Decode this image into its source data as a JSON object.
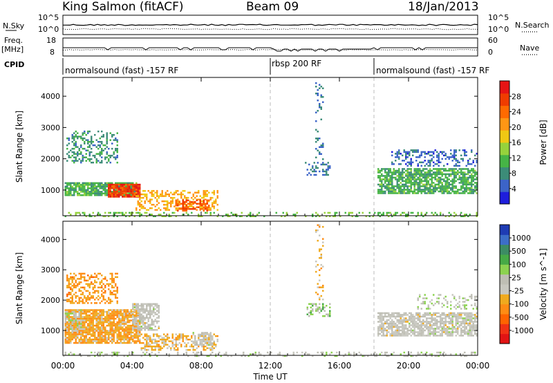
{
  "header": {
    "title": "King Salmon (fitACF)",
    "beam": "Beam 09",
    "date": "18/Jan/2013"
  },
  "left_panel_labels": {
    "nsky": "N.Sky",
    "freq_line1": "Freq.",
    "freq_line2": "[MHz]",
    "cpid": "CPID"
  },
  "right_panel_labels": {
    "nsearch": "N.Search",
    "nave": "Nave"
  },
  "noise_axis": {
    "left_ticks": [
      "10^5",
      "10^0"
    ],
    "right_ticks": [
      "10^5",
      "10^0"
    ]
  },
  "freq_axis": {
    "left_ticks": [
      "18",
      "8"
    ],
    "right_ticks": [
      "60",
      "0"
    ]
  },
  "cpid_segments": [
    {
      "label": "normalsound (fast) -157 RF",
      "start": 0,
      "end": 12
    },
    {
      "label": "rbsp 200 RF",
      "start": 12,
      "end": 18
    },
    {
      "label": "normalsound (fast) -157 RF",
      "start": 18,
      "end": 24
    }
  ],
  "colorbar_power": {
    "title": "Power [dB]",
    "ticks": [
      "28",
      "24",
      "20",
      "16",
      "12",
      "8",
      "4"
    ],
    "colors": [
      "#1e1edc",
      "#3c64c8",
      "#3c8c78",
      "#46b446",
      "#96d23c",
      "#f0c814",
      "#ff9614",
      "#ff6a00",
      "#f03c00",
      "#e61414"
    ]
  },
  "colorbar_velocity": {
    "title": "Velocity [m s^-1]",
    "ticks": [
      "1000",
      "500",
      "100",
      "25",
      "-25",
      "-100",
      "-500",
      "-1000"
    ],
    "colors": [
      "#1e3cb4",
      "#3c6ec8",
      "#3c8c64",
      "#46aa46",
      "#8cd250",
      "#bebeb4",
      "#c8c8c0",
      "#f0aa1e",
      "#ff8c14",
      "#ff6400",
      "#f03214",
      "#e11414"
    ]
  },
  "chart_data": [
    {
      "type": "heatmap",
      "title": "",
      "ylabel": "Slant Range [km]",
      "yticks": [
        "1000",
        "2000",
        "3000",
        "4000"
      ],
      "xlabel": "Time UT",
      "xticks": [
        "00:00",
        "04:00",
        "08:00",
        "12:00",
        "16:00",
        "20:00",
        "00:00"
      ],
      "xlim": [
        0,
        24
      ],
      "ylim": [
        180,
        4600
      ],
      "colorbar": "Power [dB]",
      "clim": [
        0,
        30
      ],
      "scatter_regions": [
        {
          "t0": 0.1,
          "t1": 4.3,
          "r0": 850,
          "r1": 1250,
          "value": 10,
          "density": 0.85
        },
        {
          "t0": 2.6,
          "t1": 4.5,
          "r0": 800,
          "r1": 1200,
          "value": 26,
          "density": 0.9
        },
        {
          "t0": 0.2,
          "t1": 3.2,
          "r0": 1900,
          "r1": 2900,
          "value": 8,
          "density": 0.35
        },
        {
          "t0": 4.2,
          "t1": 9.0,
          "r0": 350,
          "r1": 1000,
          "value": 18,
          "density": 0.45
        },
        {
          "t0": 6.5,
          "t1": 8.5,
          "r0": 350,
          "r1": 700,
          "value": 24,
          "density": 0.5
        },
        {
          "t0": 14.0,
          "t1": 15.5,
          "r0": 1500,
          "r1": 1900,
          "value": 6,
          "density": 0.35
        },
        {
          "t0": 14.6,
          "t1": 15.1,
          "r0": 2000,
          "r1": 4500,
          "value": 6,
          "density": 0.2
        },
        {
          "t0": 18.2,
          "t1": 24.0,
          "r0": 900,
          "r1": 1700,
          "value": 10,
          "density": 0.75
        },
        {
          "t0": 19.0,
          "t1": 24.0,
          "r0": 1750,
          "r1": 2300,
          "value": 5,
          "density": 0.35
        },
        {
          "t0": 0.0,
          "t1": 24.0,
          "r0": 180,
          "r1": 300,
          "value": 12,
          "density": 0.25
        }
      ]
    },
    {
      "type": "heatmap",
      "title": "",
      "ylabel": "Slant Range [km]",
      "yticks": [
        "1000",
        "2000",
        "3000",
        "4000"
      ],
      "xlabel": "Time UT",
      "xticks": [
        "00:00",
        "04:00",
        "08:00",
        "12:00",
        "16:00",
        "20:00",
        "00:00"
      ],
      "xlim": [
        0,
        24
      ],
      "ylim": [
        180,
        4600
      ],
      "colorbar": "Velocity [m s^-1]",
      "clim": [
        -1000,
        1000
      ],
      "scatter_regions": [
        {
          "t0": 0.1,
          "t1": 4.5,
          "r0": 600,
          "r1": 1700,
          "value": -300,
          "density": 0.85
        },
        {
          "t0": 0.2,
          "t1": 3.2,
          "r0": 1900,
          "r1": 2900,
          "value": -350,
          "density": 0.45
        },
        {
          "t0": 0.1,
          "t1": 1.2,
          "r0": 1000,
          "r1": 1700,
          "value": 60,
          "density": 0.55
        },
        {
          "t0": 4.0,
          "t1": 5.6,
          "r0": 1000,
          "r1": 1900,
          "value": 0,
          "density": 0.7
        },
        {
          "t0": 4.5,
          "t1": 9.0,
          "r0": 350,
          "r1": 900,
          "value": -200,
          "density": 0.5
        },
        {
          "t0": 7.5,
          "t1": 8.8,
          "r0": 500,
          "r1": 950,
          "value": 0,
          "density": 0.55
        },
        {
          "t0": 14.0,
          "t1": 15.5,
          "r0": 1500,
          "r1": 1900,
          "value": 200,
          "density": 0.35
        },
        {
          "t0": 14.6,
          "t1": 15.1,
          "r0": 2000,
          "r1": 4500,
          "value": -250,
          "density": 0.2
        },
        {
          "t0": 18.2,
          "t1": 24.0,
          "r0": 850,
          "r1": 1600,
          "value": 0,
          "density": 0.75
        },
        {
          "t0": 20.5,
          "t1": 24.0,
          "r0": 1700,
          "r1": 2200,
          "value": 60,
          "density": 0.3
        },
        {
          "t0": 0.0,
          "t1": 24.0,
          "r0": 180,
          "r1": 300,
          "value": 60,
          "density": 0.25
        }
      ]
    }
  ]
}
